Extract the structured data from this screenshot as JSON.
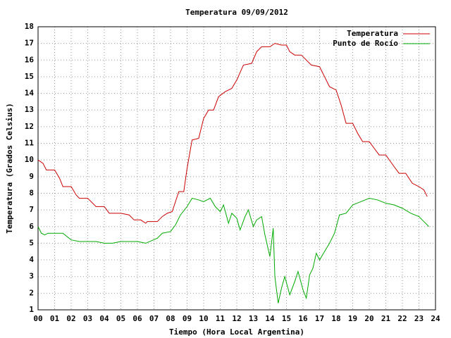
{
  "chart_data": {
    "type": "line",
    "title": "Temperatura 09/09/2012",
    "x_label": "Tiempo (Hora Local Argentina)",
    "y_label": "Temperatura (Grados Celsius)",
    "xlim": [
      0,
      24
    ],
    "ylim": [
      1,
      18
    ],
    "xticks": [
      {
        "value": 0,
        "label": "00"
      },
      {
        "value": 1,
        "label": "01"
      },
      {
        "value": 2,
        "label": "02"
      },
      {
        "value": 3,
        "label": "03"
      },
      {
        "value": 4,
        "label": "04"
      },
      {
        "value": 5,
        "label": "05"
      },
      {
        "value": 6,
        "label": "06"
      },
      {
        "value": 7,
        "label": "07"
      },
      {
        "value": 8,
        "label": "08"
      },
      {
        "value": 9,
        "label": "09"
      },
      10,
      11,
      12,
      13,
      14,
      15,
      16,
      17,
      18,
      19,
      20,
      21,
      22,
      23,
      24
    ],
    "yticks": [
      1,
      2,
      3,
      4,
      5,
      6,
      7,
      8,
      9,
      10,
      11,
      12,
      13,
      14,
      15,
      16,
      17,
      18
    ],
    "grid": true,
    "legend": "top-right",
    "series": [
      {
        "name": "Temperatura",
        "color": "#cc0000",
        "x": [
          0,
          0.3,
          0.5,
          1.0,
          1.3,
          1.5,
          2.0,
          2.3,
          2.5,
          3.0,
          3.5,
          4.0,
          4.3,
          5.0,
          5.5,
          5.8,
          6.2,
          6.5,
          6.6,
          7.2,
          7.5,
          7.8,
          8.1,
          8.5,
          8.8,
          9.0,
          9.3,
          9.7,
          10.0,
          10.3,
          10.6,
          10.9,
          11.3,
          11.7,
          12.0,
          12.4,
          12.9,
          13.2,
          13.5,
          14.0,
          14.3,
          14.7,
          15.0,
          15.2,
          15.5,
          15.9,
          16.2,
          16.5,
          17.0,
          17.3,
          17.6,
          18.0,
          18.3,
          18.6,
          19.0,
          19.3,
          19.6,
          20.0,
          20.3,
          20.6,
          21.0,
          21.5,
          21.8,
          22.2,
          22.6,
          23.0,
          23.3,
          23.5
        ],
        "values": [
          10.0,
          9.8,
          9.4,
          9.4,
          8.9,
          8.4,
          8.4,
          7.9,
          7.7,
          7.7,
          7.2,
          7.2,
          6.8,
          6.8,
          6.7,
          6.4,
          6.4,
          6.2,
          6.3,
          6.3,
          6.6,
          6.8,
          6.9,
          8.1,
          8.1,
          9.5,
          11.2,
          11.3,
          12.5,
          13.0,
          13.0,
          13.8,
          14.1,
          14.3,
          14.8,
          15.7,
          15.8,
          16.5,
          16.8,
          16.8,
          17.0,
          16.9,
          16.9,
          16.5,
          16.3,
          16.3,
          16.0,
          15.7,
          15.6,
          15.0,
          14.4,
          14.2,
          13.3,
          12.2,
          12.2,
          11.6,
          11.1,
          11.1,
          10.7,
          10.3,
          10.3,
          9.6,
          9.2,
          9.2,
          8.6,
          8.4,
          8.2,
          7.8
        ]
      },
      {
        "name": "Punto de Rocío",
        "color": "#00aa00",
        "x": [
          0,
          0.2,
          0.4,
          0.6,
          1.5,
          2.0,
          2.5,
          3.5,
          4.0,
          4.5,
          5.0,
          6.0,
          6.5,
          7.2,
          7.5,
          8.0,
          8.3,
          8.6,
          9.0,
          9.3,
          9.7,
          10.0,
          10.4,
          10.7,
          11.0,
          11.2,
          11.5,
          11.7,
          12.0,
          12.2,
          12.5,
          12.7,
          13.0,
          13.2,
          13.5,
          13.7,
          14.0,
          14.2,
          14.3,
          14.5,
          14.7,
          14.9,
          15.2,
          15.5,
          15.7,
          16.0,
          16.2,
          16.4,
          16.6,
          16.8,
          17.0,
          17.3,
          17.6,
          17.9,
          18.2,
          18.6,
          19.0,
          19.5,
          20.0,
          20.5,
          21.0,
          21.5,
          22.0,
          22.5,
          23.0,
          23.3,
          23.6
        ],
        "values": [
          6.0,
          5.6,
          5.5,
          5.6,
          5.6,
          5.2,
          5.1,
          5.1,
          5.0,
          5.0,
          5.1,
          5.1,
          5.0,
          5.3,
          5.6,
          5.7,
          6.1,
          6.7,
          7.2,
          7.7,
          7.6,
          7.5,
          7.7,
          7.2,
          6.9,
          7.3,
          6.2,
          6.8,
          6.5,
          5.8,
          6.6,
          7.0,
          6.0,
          6.4,
          6.6,
          5.5,
          4.2,
          5.9,
          3.0,
          1.4,
          2.3,
          3.0,
          1.9,
          2.7,
          3.3,
          2.2,
          1.7,
          3.1,
          3.5,
          4.4,
          4.0,
          4.5,
          5.0,
          5.6,
          6.7,
          6.8,
          7.3,
          7.5,
          7.7,
          7.6,
          7.4,
          7.3,
          7.1,
          6.8,
          6.6,
          6.3,
          6.0
        ]
      }
    ]
  }
}
